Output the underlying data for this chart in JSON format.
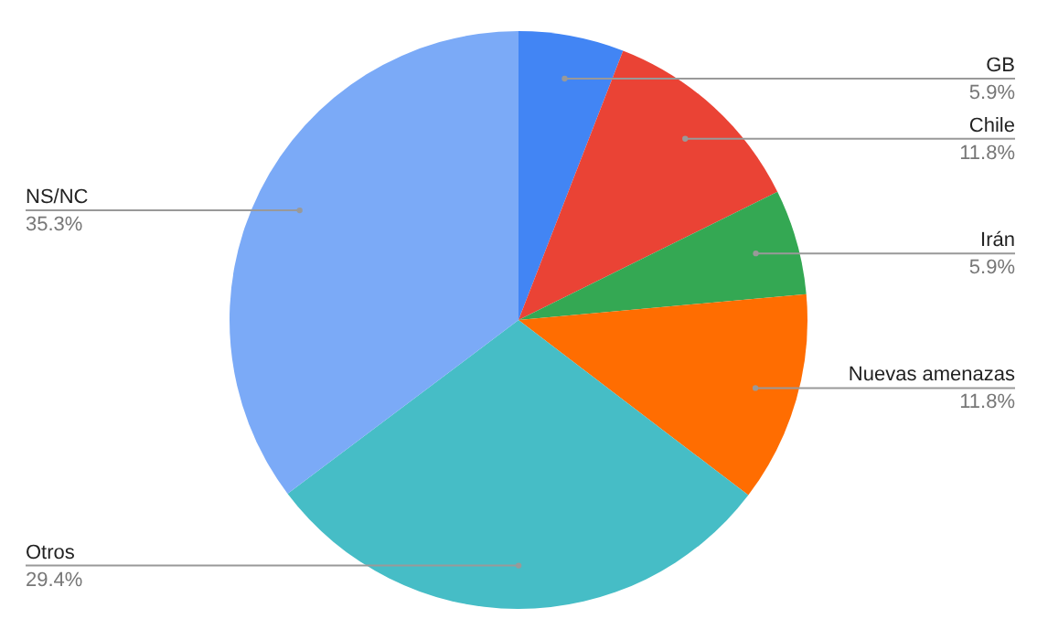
{
  "chart_data": {
    "type": "pie",
    "categories": [
      "GB",
      "Chile",
      "Irán",
      "Nuevas amenazas",
      "Otros",
      "NS/NC"
    ],
    "values": [
      5.9,
      11.8,
      5.9,
      11.8,
      29.4,
      35.3
    ],
    "colors": [
      "#4285f4",
      "#ea4335",
      "#34a853",
      "#ff6d01",
      "#46bdc6",
      "#7baaf7"
    ],
    "value_labels": [
      "5.9%",
      "11.8%",
      "5.9%",
      "11.8%",
      "29.4%",
      "35.3%"
    ]
  }
}
